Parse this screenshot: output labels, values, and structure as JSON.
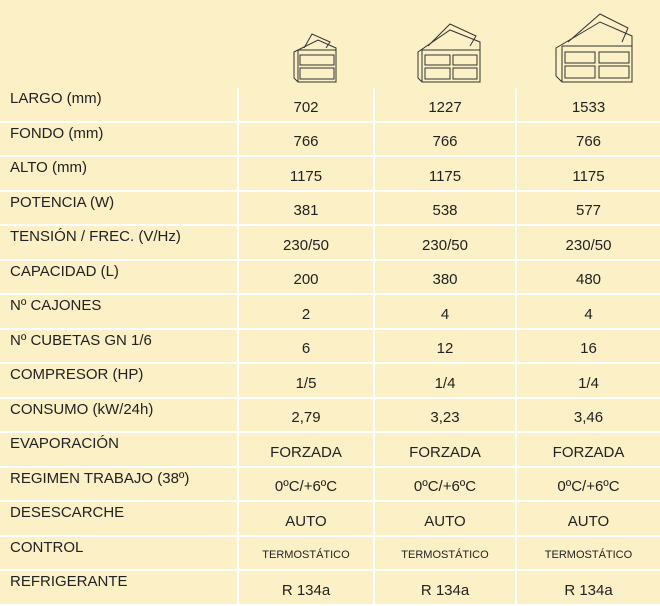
{
  "table": {
    "rows": [
      [
        "LARGO (mm)",
        "702",
        "1227",
        "1533"
      ],
      [
        "FONDO (mm)",
        "766",
        "766",
        "766"
      ],
      [
        "ALTO (mm)",
        "1175",
        "1175",
        "1175"
      ],
      [
        "POTENCIA (W)",
        "381",
        "538",
        "577"
      ],
      [
        "TENSIÓN / FREC. (V/Hz)",
        "230/50",
        "230/50",
        "230/50"
      ],
      [
        "CAPACIDAD (L)",
        "200",
        "380",
        "480"
      ],
      [
        "Nº CAJONES",
        "2",
        "4",
        "4"
      ],
      [
        "Nº CUBETAS GN 1/6",
        "6",
        "12",
        "16"
      ],
      [
        "COMPRESOR (HP)",
        "1/5",
        "1/4",
        "1/4"
      ],
      [
        "CONSUMO (kW/24h)",
        "2,79",
        "3,23",
        "3,46"
      ],
      [
        "EVAPORACIÓN",
        "FORZADA",
        "FORZADA",
        "FORZADA"
      ],
      [
        "REGIMEN TRABAJO (38º)",
        "0ºC/+6ºC",
        "0ºC/+6ºC",
        "0ºC/+6ºC"
      ],
      [
        "DESESCARCHE",
        "AUTO",
        "AUTO",
        "AUTO"
      ],
      [
        "CONTROL",
        "TERMOSTÁTICO",
        "TERMOSTÁTICO",
        "TERMOSTÁTICO"
      ],
      [
        "REFRIGERANTE",
        "R 134a",
        "R 134a",
        "R 134a"
      ]
    ]
  }
}
